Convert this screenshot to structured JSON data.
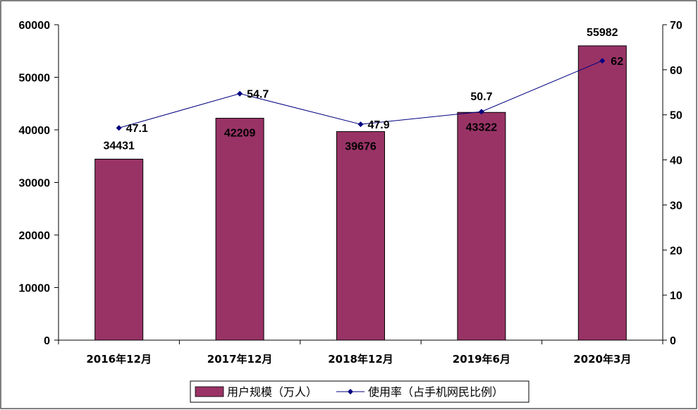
{
  "chart_data": {
    "type": "bar",
    "categories": [
      "2016年12月",
      "2017年12月",
      "2018年12月",
      "2019年6月",
      "2020年3月"
    ],
    "series": [
      {
        "name": "用户规模（万人）",
        "type": "bar",
        "axis": "left",
        "color": "#993366",
        "values": [
          34431,
          42209,
          39676,
          43322,
          55982
        ],
        "labels": [
          "34431",
          "42209",
          "39676",
          "43322",
          "55982"
        ]
      },
      {
        "name": "使用率（占手机网民比例）",
        "type": "line",
        "axis": "right",
        "color": "#000080",
        "marker": "diamond",
        "values": [
          47.1,
          54.7,
          47.9,
          50.7,
          62
        ],
        "labels": [
          "47.1",
          "54.7",
          "47.9",
          "50.7",
          "62"
        ]
      }
    ],
    "y_left": {
      "range": [
        0,
        60000
      ],
      "ticks": [
        "0",
        "10000",
        "20000",
        "30000",
        "40000",
        "50000",
        "60000"
      ]
    },
    "y_right": {
      "range": [
        0,
        70
      ],
      "ticks": [
        "0",
        "10",
        "20",
        "30",
        "40",
        "50",
        "60",
        "70"
      ]
    },
    "title": "",
    "xlabel": "",
    "ylabel": "",
    "grid": false,
    "legend": "bottom-center"
  }
}
